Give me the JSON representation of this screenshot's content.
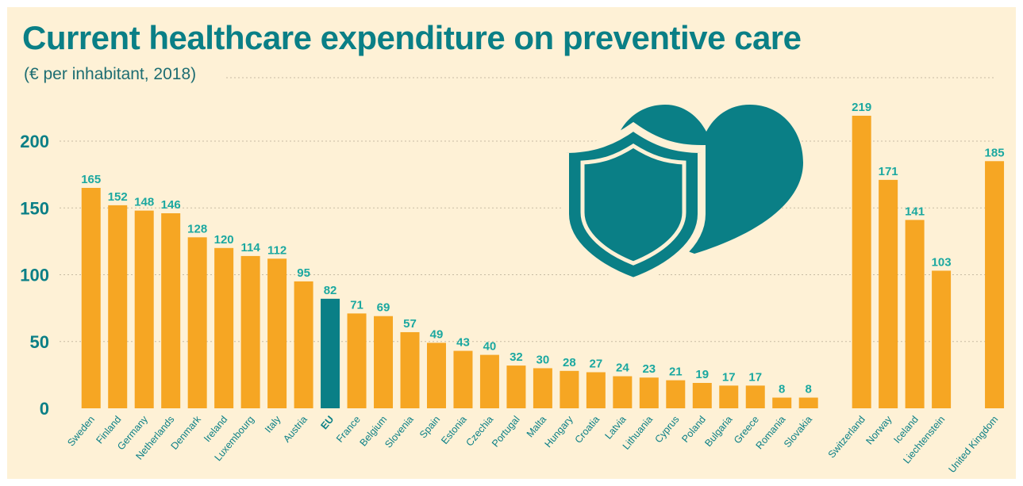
{
  "title": "Current healthcare expenditure on preventive care",
  "subtitle": "(€ per inhabitant, 2018)",
  "colors": {
    "background": "#fef1d6",
    "bar": "#f6a623",
    "highlight": "#0a7f86",
    "label": "#1ba8a0",
    "axis_text": "#0a7f86",
    "icon": "#0a7f86"
  },
  "icons": [
    "heart-icon",
    "shield-icon",
    "medical-cross-icon"
  ],
  "chart_data": {
    "type": "bar",
    "title": "Current healthcare expenditure on preventive care",
    "subtitle": "(€ per inhabitant, 2018)",
    "xlabel": "",
    "ylabel": "",
    "ylim": [
      0,
      220
    ],
    "yticks": [
      0,
      50,
      100,
      150,
      200
    ],
    "grid": true,
    "legend": "none",
    "highlight_category": "EU",
    "groups": [
      {
        "categories": [
          "Sweden",
          "Finland",
          "Germany",
          "Netherlands",
          "Denmark",
          "Ireland",
          "Luxembourg",
          "Italy",
          "Austria",
          "EU",
          "France",
          "Belgium",
          "Slovenia",
          "Spain",
          "Estonia",
          "Czechia",
          "Portugal",
          "Malta",
          "Hungary",
          "Croatia",
          "Latvia",
          "Lithuania",
          "Cyprus",
          "Poland",
          "Bulgaria",
          "Greece",
          "Romania",
          "Slovakia"
        ],
        "values": [
          165,
          152,
          148,
          146,
          128,
          120,
          114,
          112,
          95,
          82,
          71,
          69,
          57,
          49,
          43,
          40,
          32,
          30,
          28,
          27,
          24,
          23,
          21,
          19,
          17,
          17,
          8,
          8
        ]
      },
      {
        "categories": [
          "Switzerland",
          "Norway",
          "Iceland",
          "Liechtenstein"
        ],
        "values": [
          219,
          171,
          141,
          103
        ]
      },
      {
        "categories": [
          "United Kingdom"
        ],
        "values": [
          185
        ]
      }
    ]
  }
}
